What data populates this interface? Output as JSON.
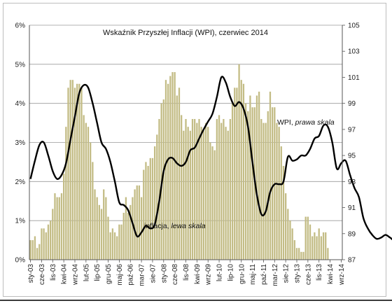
{
  "chart_data": {
    "type": "bar",
    "title": "Wskaźnik Przyszłej Inflacji (WPI), czerwiec 2014",
    "x_tick_labels": [
      "sty-03",
      "cze-03",
      "lis-03",
      "kwi-04",
      "wrz-04",
      "lut-05",
      "lip-05",
      "gru-05",
      "maj-06",
      "paź-06",
      "mar-07",
      "sie-07",
      "sty-08",
      "cze-08",
      "lis-08",
      "kwi-09",
      "wrz-09",
      "lut-10",
      "lip-10",
      "gru-10",
      "maj-11",
      "paź-11",
      "mar-12",
      "sie-12",
      "sty-13",
      "cze-13",
      "lis-13",
      "kwi-14",
      "wrz-14"
    ],
    "y_left": {
      "ticks": [
        "0%",
        "1%",
        "2%",
        "3%",
        "4%",
        "5%",
        "6%"
      ],
      "range": [
        0,
        6
      ]
    },
    "y_right": {
      "ticks": [
        "87",
        "89",
        "91",
        "93",
        "95",
        "97",
        "99",
        "101",
        "103",
        "105"
      ],
      "range": [
        87,
        105
      ]
    },
    "grid": true,
    "annotations": {
      "inflation_label": "inflacja, ",
      "inflation_label_it": "lewa skala",
      "wpi_label": "WPI, ",
      "wpi_label_it": "prawa skala"
    },
    "colors": {
      "bars": "#c3bc85",
      "line": "#000000",
      "grid": "#9a9a9a"
    },
    "series": [
      {
        "kind": "bar",
        "axis": "left",
        "start": "sty-03",
        "values": [
          0.5,
          0.5,
          0.6,
          0.3,
          0.4,
          0.8,
          0.8,
          0.7,
          0.9,
          1.0,
          1.3,
          1.7,
          1.6,
          1.6,
          1.7,
          2.2,
          3.4,
          4.4,
          4.6,
          4.6,
          4.4,
          4.5,
          4.5,
          4.4,
          3.7,
          3.5,
          3.4,
          3.0,
          2.5,
          1.8,
          1.6,
          1.4,
          1.3,
          1.8,
          1.6,
          1.1,
          0.7,
          0.8,
          0.7,
          0.6,
          0.9,
          0.9,
          1.2,
          1.6,
          1.2,
          1.4,
          1.6,
          1.8,
          1.9,
          1.9,
          1.6,
          2.3,
          2.5,
          2.4,
          2.6,
          2.6,
          2.9,
          3.2,
          3.6,
          4.0,
          4.1,
          4.6,
          4.5,
          4.7,
          4.8,
          4.8,
          4.2,
          4.4,
          3.7,
          3.3,
          3.6,
          3.4,
          3.3,
          3.6,
          3.6,
          3.5,
          3.6,
          3.4,
          3.3,
          3.5,
          3.4,
          3.0,
          2.9,
          2.8,
          3.6,
          3.7,
          3.5,
          3.6,
          3.4,
          3.3,
          3.6,
          4.0,
          4.4,
          4.4,
          5.0,
          4.6,
          4.5,
          4.0,
          3.8,
          4.2,
          3.9,
          3.9,
          4.2,
          4.3,
          3.6,
          3.5,
          3.5,
          3.8,
          4.3,
          3.9,
          3.9,
          3.5,
          3.4,
          2.9,
          2.4,
          1.7,
          1.3,
          1.0,
          0.8,
          0.5,
          0.3,
          0.3,
          0.2,
          0.2,
          1.1,
          1.1,
          0.9,
          0.6,
          0.7,
          0.6,
          0.8,
          0.6,
          0.7,
          0.7,
          0.3
        ]
      },
      {
        "kind": "line",
        "axis": "right",
        "start": "sty-03",
        "values": [
          93.2,
          94.6,
          95.8,
          96.0,
          95.0,
          93.8,
          93.2,
          93.5,
          94.4,
          96.2,
          98.0,
          99.8,
          100.4,
          100.2,
          99.0,
          97.5,
          96.0,
          95.5,
          94.5,
          93.0,
          91.4,
          91.2,
          90.8,
          89.8,
          88.8,
          89.1,
          89.6,
          89.4,
          89.7,
          91.5,
          93.8,
          94.7,
          94.8,
          94.4,
          94.2,
          94.5,
          95.4,
          95.6,
          96.3,
          97.0,
          97.6,
          98.2,
          99.5,
          101.0,
          100.6,
          99.5,
          98.8,
          99.1,
          98.6,
          97.2,
          94.5,
          92.0,
          90.5,
          90.7,
          92.2,
          92.8,
          92.8,
          93.0,
          94.9,
          94.6,
          94.7,
          95.0,
          95.0,
          95.5,
          96.3,
          96.5,
          97.3,
          97.2,
          96.0,
          94.0,
          94.4,
          94.6,
          93.5,
          92.5,
          91.8,
          90.2,
          89.4,
          88.9,
          88.6,
          88.7,
          88.9,
          88.7,
          88.5,
          88.9,
          90.0,
          91.5,
          92.3,
          92.5
        ]
      }
    ]
  }
}
